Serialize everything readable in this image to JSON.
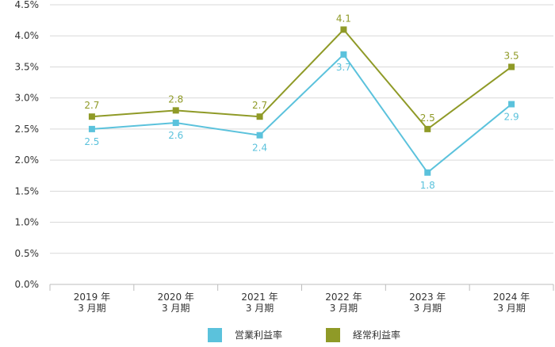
{
  "chart_data": {
    "type": "line",
    "title": "",
    "xlabel": "",
    "ylabel": "",
    "categories": [
      [
        "2019 年",
        "3 月期"
      ],
      [
        "2020 年",
        "3 月期"
      ],
      [
        "2021 年",
        "3 月期"
      ],
      [
        "2022 年",
        "3 月期"
      ],
      [
        "2023 年",
        "3 月期"
      ],
      [
        "2024 年",
        "3 月期"
      ]
    ],
    "ylim": [
      0,
      4.5
    ],
    "yticks": [
      0,
      0.5,
      1.0,
      1.5,
      2.0,
      2.5,
      3.0,
      3.5,
      4.0,
      4.5
    ],
    "ytick_labels": [
      "0.0%",
      "0.5%",
      "1.0%",
      "1.5%",
      "2.0%",
      "2.5%",
      "3.0%",
      "3.5%",
      "4.0%",
      "4.5%"
    ],
    "grid": true,
    "legend_position": "bottom",
    "series": [
      {
        "name": "営業利益率",
        "color": "#5bc2dc",
        "values": [
          2.5,
          2.6,
          2.4,
          3.7,
          1.8,
          2.9
        ],
        "value_labels": [
          "2.5",
          "2.6",
          "2.4",
          "3.7",
          "1.8",
          "2.9"
        ]
      },
      {
        "name": "経常利益率",
        "color": "#8f9a27",
        "values": [
          2.7,
          2.8,
          2.7,
          4.1,
          2.5,
          3.5
        ],
        "value_labels": [
          "2.7",
          "2.8",
          "2.7",
          "4.1",
          "2.5",
          "3.5"
        ]
      }
    ]
  }
}
